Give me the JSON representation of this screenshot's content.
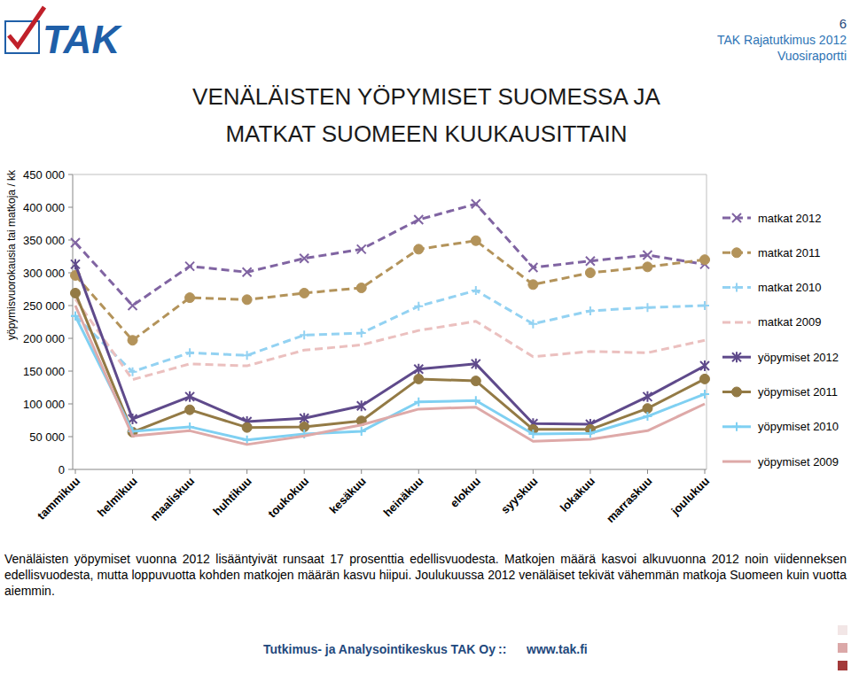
{
  "page": {
    "logo": "TAK",
    "page_number": "6",
    "report": "TAK Rajatutkimus 2012",
    "subtitle": "Vuosiraportti",
    "caption": "Venäläisten yöpymiset vuonna 2012 lisääntyivät runsaat 17 prosenttia edellisvuodesta. Matkojen määrä kasvoi alkuvuonna 2012 noin viidenneksen edellisvuodesta, mutta loppuvuotta kohden matkojen määrän kasvu hiipui. Joulukuussa 2012 venäläiset tekivät vähemmän matkoja Suomeen kuin vuotta aiemmin.",
    "footer": [
      "Tutkimus- ja Analysointikeskus TAK Oy",
      "::",
      "www.tak.fi"
    ]
  },
  "chart_data": {
    "type": "line",
    "title": "VENÄLÄISTEN YÖPYMISET SUOMESSA JA MATKAT SUOMEEN KUUKAUSITTAIN",
    "y_label": "yöpymisvuorokausia tai matkoja / kk",
    "categories": [
      "tammikuu",
      "helmikuu",
      "maaliskuu",
      "huhtikuu",
      "toukokuu",
      "kesäkuu",
      "heinäkuu",
      "elokuu",
      "syyskuu",
      "lokakuu",
      "marraskuu",
      "joulukuu"
    ],
    "series": [
      {
        "name": "matkat 2012",
        "color": "#8064a2",
        "line_style": "dashed",
        "marker": "x",
        "values": [
          346000,
          250000,
          310000,
          301000,
          322000,
          336000,
          381000,
          405000,
          308000,
          318000,
          327000,
          313000
        ]
      },
      {
        "name": "matkat 2011",
        "color": "#b3935a",
        "line_style": "dashed",
        "marker": "circle",
        "values": [
          296000,
          197000,
          262000,
          259000,
          269000,
          277000,
          336000,
          349000,
          282000,
          300000,
          309000,
          320000
        ]
      },
      {
        "name": "matkat 2010",
        "color": "#93d2f2",
        "line_style": "dashed",
        "marker": "plus",
        "values": [
          234000,
          149000,
          178000,
          174000,
          205000,
          208000,
          249000,
          273000,
          222000,
          242000,
          247000,
          250000
        ]
      },
      {
        "name": "matkat 2009",
        "color": "#ebc0bf",
        "line_style": "dashed",
        "marker": "none",
        "values": [
          260000,
          137000,
          161000,
          158000,
          182000,
          190000,
          212000,
          226000,
          172000,
          180000,
          178000,
          197000
        ]
      },
      {
        "name": "yöpymiset 2012",
        "color": "#5f4a8b",
        "line_style": "solid",
        "marker": "asterisk",
        "values": [
          313000,
          77000,
          111000,
          73000,
          78000,
          97000,
          153000,
          161000,
          70000,
          69000,
          111000,
          158000
        ]
      },
      {
        "name": "yöpymiset 2011",
        "color": "#937a45",
        "line_style": "solid",
        "marker": "circle",
        "values": [
          269000,
          57000,
          91000,
          64000,
          65000,
          74000,
          138000,
          135000,
          61000,
          61000,
          93000,
          138000
        ]
      },
      {
        "name": "yöpymiset 2010",
        "color": "#7fd0f2",
        "line_style": "solid",
        "marker": "plus",
        "values": [
          234000,
          58000,
          65000,
          45000,
          54000,
          58000,
          103000,
          105000,
          54000,
          55000,
          81000,
          115000
        ]
      },
      {
        "name": "yöpymiset 2009",
        "color": "#dea9a8",
        "line_style": "solid",
        "marker": "none",
        "values": [
          250000,
          51000,
          59000,
          38000,
          51000,
          68000,
          92000,
          95000,
          43000,
          46000,
          59000,
          100000
        ]
      }
    ],
    "ylim": [
      0,
      450000
    ],
    "yticks": [
      0,
      {
        "value": 50000,
        "label": "50 000"
      },
      {
        "value": 100000,
        "label": "100 000"
      },
      {
        "value": 150000,
        "label": "150 000"
      },
      {
        "value": 200000,
        "label": "200 000"
      },
      {
        "value": 250000,
        "label": "250 000"
      },
      {
        "value": 300000,
        "label": "300 000"
      },
      {
        "value": 350000,
        "label": "350 000"
      },
      {
        "value": 400000,
        "label": "400 000"
      },
      {
        "value": 450000,
        "label": "450 000"
      }
    ],
    "grid": false,
    "legend": "right"
  }
}
